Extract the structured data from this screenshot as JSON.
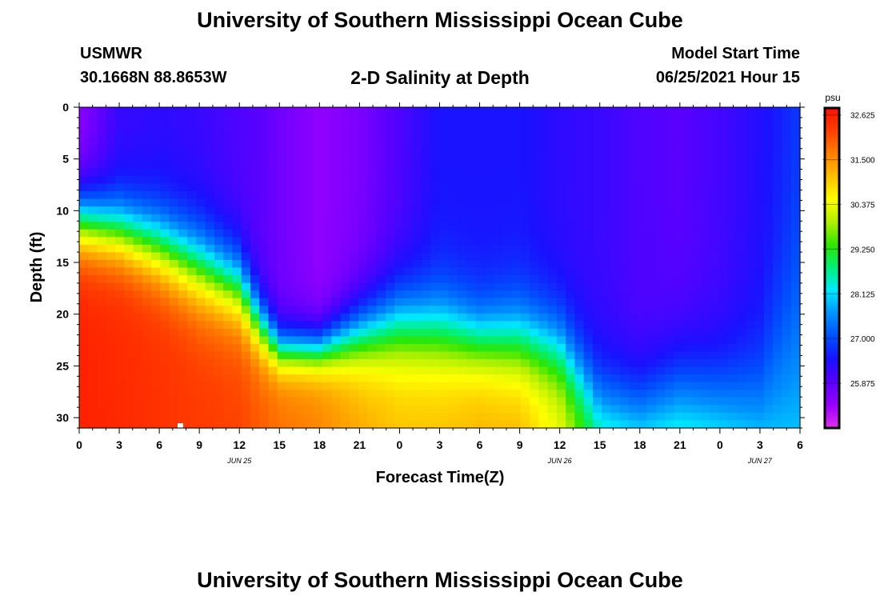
{
  "header": {
    "title_top": "University of Southern Mississippi Ocean Cube",
    "station": "USMWR",
    "coords": "30.1668N  88.8653W",
    "plot_title": "2-D Salinity at Depth",
    "model_label": "Model Start Time",
    "model_time": "06/25/2021 Hour 15",
    "title_bottom": "University of Southern Mississippi Ocean Cube"
  },
  "colors": {
    "stops": [
      "#e22ee8",
      "#9900ff",
      "#5a00ff",
      "#1a10ff",
      "#0050ff",
      "#0090ff",
      "#00e8ff",
      "#00f07a",
      "#2ee600",
      "#b0f000",
      "#ffff00",
      "#ffc000",
      "#ff8000",
      "#ff4000",
      "#ff1000"
    ]
  },
  "chart_data": {
    "type": "heatmap",
    "xlabel": "Forecast Time(Z)",
    "ylabel": "Depth (ft)",
    "x_hours": [
      0,
      54
    ],
    "x_ticks": [
      "0",
      "3",
      "6",
      "9",
      "12",
      "15",
      "18",
      "21",
      "0",
      "3",
      "6",
      "9",
      "12",
      "15",
      "18",
      "21",
      "0",
      "3",
      "6"
    ],
    "date_labels": [
      {
        "label": "JUN 25",
        "hour": 12
      },
      {
        "label": "JUN 26",
        "hour": 36
      },
      {
        "label": "JUN 27",
        "hour": 51
      }
    ],
    "ylim": [
      0,
      31
    ],
    "y_ticks": [
      0,
      5,
      10,
      15,
      20,
      25,
      30
    ],
    "colorbar": {
      "unit": "psu",
      "range": [
        24.75,
        32.8
      ],
      "tick_labels": [
        "32.625",
        "31.500",
        "30.375",
        "29.250",
        "28.125",
        "27.000",
        "25.875"
      ],
      "tick_values": [
        32.625,
        31.5,
        30.375,
        29.25,
        28.125,
        27.0,
        25.875
      ]
    },
    "surface_salinity": 26.3,
    "deep_salinity": 28.2,
    "high_salinity": 32.3,
    "columns": [
      {
        "hour": 0,
        "pycno": 11.0,
        "width": 2.0,
        "top": 25.4,
        "deep": 32.6
      },
      {
        "hour": 3,
        "pycno": 12.0,
        "width": 2.0,
        "top": 26.2,
        "deep": 32.5
      },
      {
        "hour": 6,
        "pycno": 13.5,
        "width": 2.2,
        "top": 26.3,
        "deep": 32.4
      },
      {
        "hour": 9,
        "pycno": 15.5,
        "width": 2.4,
        "top": 26.2,
        "deep": 32.3
      },
      {
        "hour": 12,
        "pycno": 17.5,
        "width": 2.2,
        "top": 26.0,
        "deep": 32.2
      },
      {
        "hour": 13.5,
        "pycno": 21.0,
        "width": 1.8,
        "top": 25.9,
        "deep": 32.0
      },
      {
        "hour": 15,
        "pycno": 23.5,
        "width": 1.4,
        "top": 25.7,
        "deep": 31.8
      },
      {
        "hour": 18,
        "pycno": 23.5,
        "width": 1.4,
        "top": 25.4,
        "deep": 31.6
      },
      {
        "hour": 21,
        "pycno": 22.0,
        "width": 2.0,
        "top": 25.6,
        "deep": 31.3
      },
      {
        "hour": 24,
        "pycno": 21.0,
        "width": 2.5,
        "top": 26.0,
        "deep": 31.1
      },
      {
        "hour": 27,
        "pycno": 21.5,
        "width": 2.5,
        "top": 26.5,
        "deep": 31.1
      },
      {
        "hour": 30,
        "pycno": 22.5,
        "width": 2.2,
        "top": 26.5,
        "deep": 31.2
      },
      {
        "hour": 33,
        "pycno": 22.5,
        "width": 2.5,
        "top": 26.5,
        "deep": 31.2
      },
      {
        "hour": 36,
        "pycno": 23.5,
        "width": 2.5,
        "top": 26.3,
        "deep": 30.5
      },
      {
        "hour": 39,
        "pycno": 28.5,
        "width": 2.5,
        "top": 26.2,
        "deep": 29.2
      },
      {
        "hour": 42,
        "pycno": 29.0,
        "width": 2.5,
        "top": 26.0,
        "deep": 28.9
      },
      {
        "hour": 45,
        "pycno": 27.5,
        "width": 3.0,
        "top": 25.9,
        "deep": 29.0
      },
      {
        "hour": 48,
        "pycno": 28.0,
        "width": 3.0,
        "top": 26.1,
        "deep": 28.8
      },
      {
        "hour": 51,
        "pycno": 28.5,
        "width": 3.5,
        "top": 26.4,
        "deep": 28.6
      },
      {
        "hour": 54,
        "pycno": 25.0,
        "width": 7.0,
        "top": 26.8,
        "deep": 28.4
      }
    ]
  }
}
